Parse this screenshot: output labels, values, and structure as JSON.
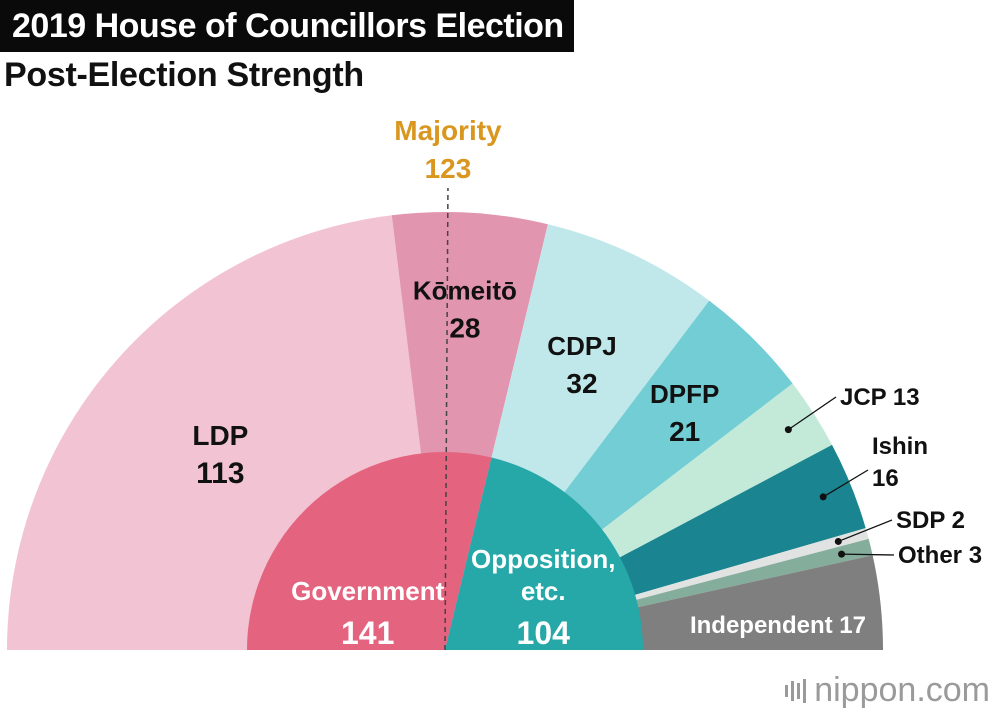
{
  "title": "2019 House of Councillors Election",
  "subtitle": "Post-Election Strength",
  "watermark": {
    "name": "nippon",
    "suffix": ".com",
    "icon": "nippon-logo-bars"
  },
  "chart_data": {
    "type": "pie",
    "variant": "semicircle-parliament",
    "majority": {
      "label": "Majority",
      "value": 123,
      "color": "#d9971f"
    },
    "outer_ring": [
      {
        "name": "LDP",
        "value": 113,
        "color": "#f2c3d3"
      },
      {
        "name": "Kōmeitō",
        "value": 28,
        "color": "#e195ae"
      },
      {
        "name": "CDPJ",
        "value": 32,
        "color": "#c0e8ea"
      },
      {
        "name": "DPFP",
        "value": 21,
        "color": "#72cdd4"
      },
      {
        "name": "JCP",
        "value": 13,
        "color": "#c3ead8"
      },
      {
        "name": "Ishin",
        "value": 16,
        "color": "#1a8590"
      },
      {
        "name": "SDP",
        "value": 2,
        "color": "#e1e3e3"
      },
      {
        "name": "Other",
        "value": 3,
        "color": "#84ad9c"
      },
      {
        "name": "Independent",
        "value": 17,
        "color": "#7f7f7f"
      }
    ],
    "inner_ring": [
      {
        "name": "Government",
        "value": 141,
        "color": "#e4637f"
      },
      {
        "name": "Opposition, etc.",
        "value": 104,
        "color": "#26a8a8"
      }
    ]
  }
}
